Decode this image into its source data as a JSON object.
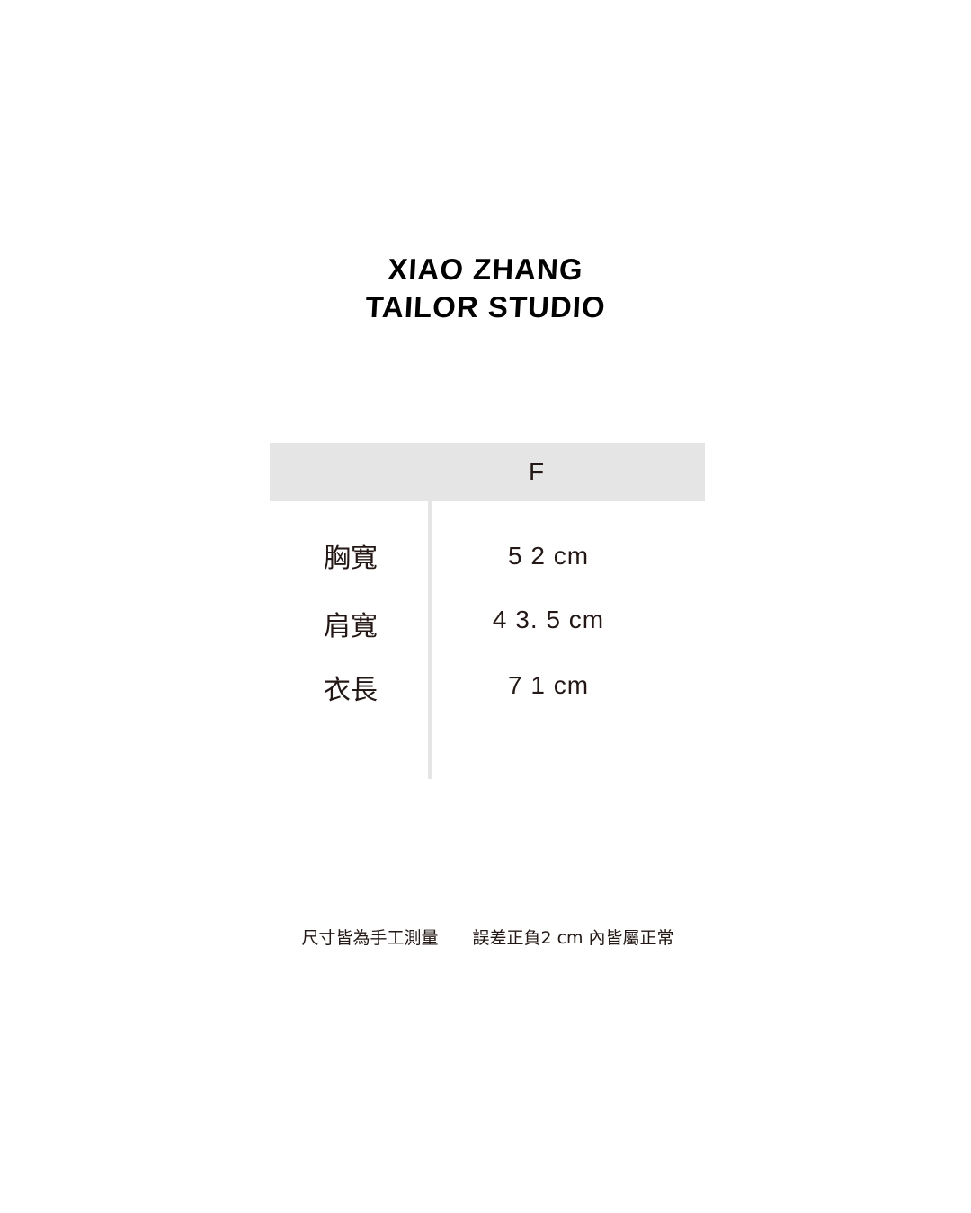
{
  "brand": {
    "line1": "XIAO ZHANG",
    "line2": "TAILOR STUDIO"
  },
  "table": {
    "size_header": "F",
    "rows": [
      {
        "label": "胸寬",
        "value": "5 2 cm"
      },
      {
        "label": "肩寬",
        "value": "4 3. 5 cm"
      },
      {
        "label": "衣長",
        "value": "7 1 cm"
      }
    ]
  },
  "note": "尺寸皆為手工測量　　誤差正負2 cm 內皆屬正常"
}
